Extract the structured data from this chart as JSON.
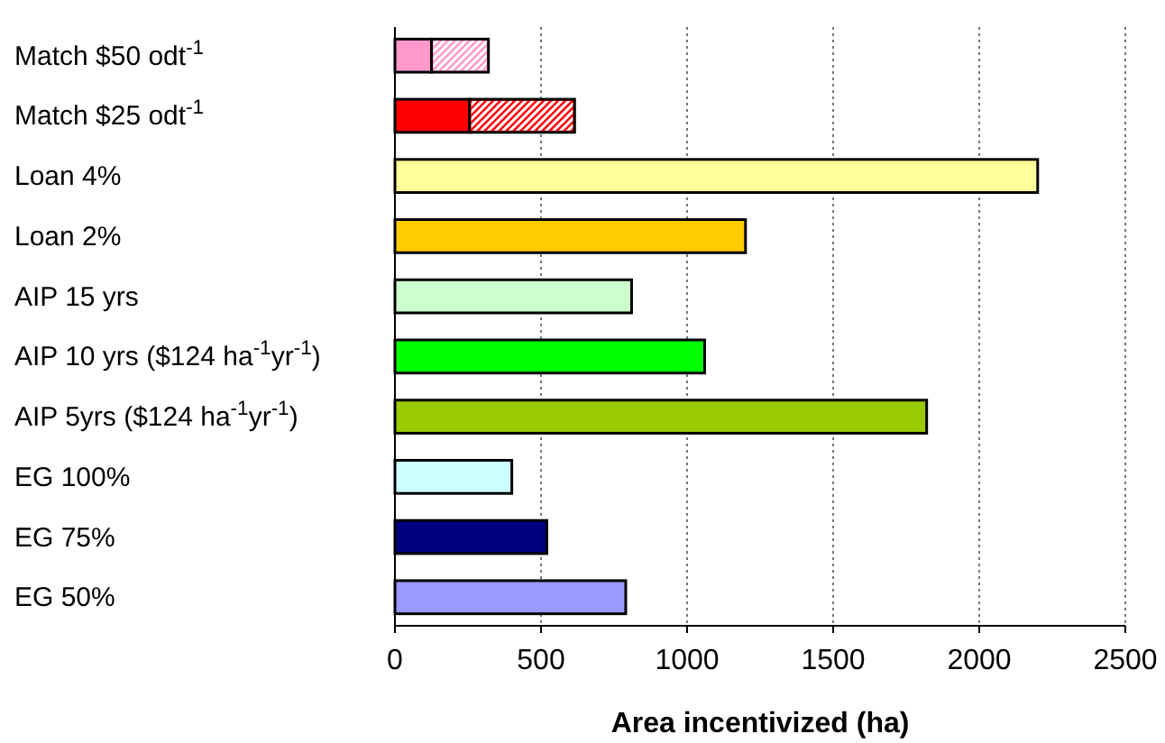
{
  "chart_data": {
    "type": "bar",
    "orientation": "horizontal",
    "stacked": true,
    "xlabel": "Area incentivized (ha)",
    "categories": [
      "Match $50 odt$^{-1}$",
      "Match $25 odt$^{-1}$",
      "Loan 4%",
      "Loan 2%",
      "AIP 15 yrs",
      "AIP 10 yrs ($124 ha$^{-1}$yr$^{-1}$)",
      "AIP 5yrs ($124 ha$^{-1}$yr$^{-1}$)",
      "EG 100%",
      "EG 75%",
      "EG 50%"
    ],
    "series": [
      {
        "values": [
          125,
          255,
          2200,
          1200,
          810,
          1060,
          1820,
          400,
          520,
          790
        ],
        "colors": [
          "#ff99cc",
          "#ff0000",
          "#ffff99",
          "#ffcc00",
          "#ccffcc",
          "#00ff00",
          "#99cc00",
          "#ccffff",
          "#000080",
          "#9999ff"
        ]
      },
      {
        "values": [
          195,
          360,
          null,
          null,
          null,
          null,
          null,
          null,
          null,
          null
        ],
        "colors": [
          "#ff99cc",
          "#ff0000",
          null,
          null,
          null,
          null,
          null,
          null,
          null,
          null
        ]
      }
    ],
    "xlim": [
      0,
      2500
    ],
    "xticks": [
      0,
      500,
      1000,
      1500,
      2000,
      2500
    ],
    "grid": "x"
  }
}
